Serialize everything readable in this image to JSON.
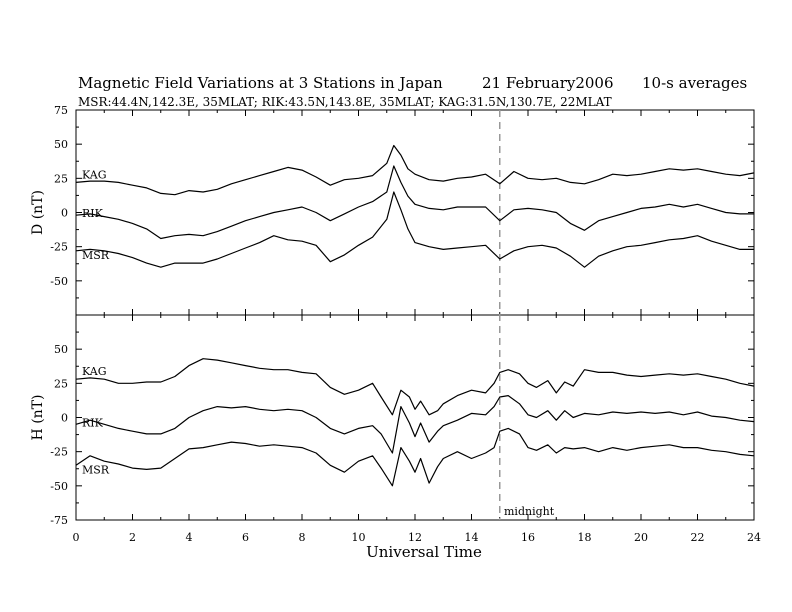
{
  "chart_data": {
    "type": "line",
    "title": "Magnetic Field Variations at 3 Stations in Japan",
    "date": "21 February2006",
    "averaging": "10-s averages",
    "subtitle": "MSR:44.4N,142.3E, 35MLAT;  RIK:43.5N,143.8E, 35MLAT;  KAG:31.5N,130.7E, 22MLAT",
    "xlabel": "Universal Time",
    "xlim": [
      0,
      24
    ],
    "xticks": [
      "0",
      "2",
      "4",
      "6",
      "8",
      "10",
      "12",
      "14",
      "16",
      "18",
      "20",
      "22",
      "24"
    ],
    "annotation": {
      "label": "midnight",
      "x": 15
    },
    "panels": [
      {
        "ylabel": "D (nT)",
        "ylim": [
          -75,
          75
        ],
        "yticks": [
          "75",
          "50",
          "25",
          "0",
          "-25",
          "-50"
        ],
        "x": [
          0,
          0.5,
          1,
          1.5,
          2,
          2.5,
          3,
          3.5,
          4,
          4.5,
          5,
          5.5,
          6,
          6.5,
          7,
          7.5,
          8,
          8.5,
          9,
          9.5,
          10,
          10.5,
          11,
          11.25,
          11.5,
          11.75,
          12,
          12.5,
          13,
          13.5,
          14,
          14.5,
          15,
          15.5,
          16,
          16.5,
          17,
          17.5,
          18,
          18.5,
          19,
          19.5,
          20,
          20.5,
          21,
          21.5,
          22,
          22.5,
          23,
          23.5,
          24
        ],
        "series": [
          {
            "name": "KAG",
            "values": [
              22,
              23,
              23,
              22,
              20,
              18,
              14,
              13,
              16,
              15,
              17,
              21,
              24,
              27,
              30,
              33,
              31,
              26,
              20,
              24,
              25,
              27,
              36,
              49,
              42,
              32,
              28,
              24,
              23,
              25,
              26,
              28,
              21,
              30,
              25,
              24,
              25,
              22,
              21,
              24,
              28,
              27,
              28,
              30,
              32,
              31,
              32,
              30,
              28,
              27,
              29
            ]
          },
          {
            "name": "RIK",
            "values": [
              -2,
              -1,
              -3,
              -5,
              -8,
              -12,
              -19,
              -17,
              -16,
              -17,
              -14,
              -10,
              -6,
              -3,
              0,
              2,
              4,
              0,
              -6,
              -1,
              4,
              8,
              15,
              34,
              22,
              12,
              6,
              3,
              2,
              4,
              4,
              4,
              -6,
              2,
              3,
              2,
              0,
              -8,
              -13,
              -6,
              -3,
              0,
              3,
              4,
              6,
              4,
              6,
              3,
              0,
              -1,
              -1
            ]
          },
          {
            "name": "MSR",
            "values": [
              -28,
              -27,
              -28,
              -30,
              -33,
              -37,
              -40,
              -37,
              -37,
              -37,
              -34,
              -30,
              -26,
              -22,
              -17,
              -20,
              -21,
              -24,
              -36,
              -31,
              -24,
              -18,
              -5,
              15,
              2,
              -12,
              -22,
              -25,
              -27,
              -26,
              -25,
              -24,
              -34,
              -28,
              -25,
              -24,
              -26,
              -32,
              -40,
              -32,
              -28,
              -25,
              -24,
              -22,
              -20,
              -19,
              -17,
              -21,
              -24,
              -27,
              -27
            ]
          }
        ]
      },
      {
        "ylabel": "H (nT)",
        "ylim": [
          -75,
          75
        ],
        "yticks": [
          "50",
          "25",
          "0",
          "-25",
          "-50",
          "-75"
        ],
        "x": [
          0,
          0.5,
          1,
          1.5,
          2,
          2.5,
          3,
          3.5,
          4,
          4.5,
          5,
          5.5,
          6,
          6.5,
          7,
          7.5,
          8,
          8.5,
          9,
          9.5,
          10,
          10.5,
          10.8,
          11.2,
          11.5,
          11.8,
          12,
          12.2,
          12.5,
          12.8,
          13,
          13.5,
          14,
          14.5,
          14.8,
          15,
          15.3,
          15.7,
          16,
          16.3,
          16.7,
          17,
          17.3,
          17.6,
          18,
          18.5,
          19,
          19.5,
          20,
          20.5,
          21,
          21.5,
          22,
          22.5,
          23,
          23.5,
          24
        ],
        "series": [
          {
            "name": "KAG",
            "values": [
              28,
              29,
              28,
              25,
              25,
              26,
              26,
              30,
              38,
              43,
              42,
              40,
              38,
              36,
              35,
              35,
              33,
              32,
              22,
              17,
              20,
              25,
              15,
              2,
              20,
              15,
              6,
              12,
              2,
              5,
              10,
              16,
              20,
              18,
              25,
              33,
              35,
              32,
              25,
              22,
              27,
              18,
              26,
              23,
              35,
              33,
              33,
              31,
              30,
              31,
              32,
              31,
              32,
              30,
              28,
              25,
              23
            ]
          },
          {
            "name": "RIK",
            "values": [
              -5,
              -2,
              -5,
              -8,
              -10,
              -12,
              -12,
              -8,
              0,
              5,
              8,
              7,
              8,
              6,
              5,
              6,
              5,
              0,
              -8,
              -12,
              -8,
              -6,
              -12,
              -26,
              8,
              -4,
              -14,
              -4,
              -18,
              -10,
              -6,
              -2,
              3,
              2,
              8,
              15,
              16,
              10,
              2,
              0,
              5,
              -2,
              5,
              0,
              3,
              2,
              4,
              3,
              4,
              3,
              4,
              2,
              4,
              1,
              0,
              -2,
              -3
            ]
          },
          {
            "name": "MSR",
            "values": [
              -35,
              -28,
              -32,
              -34,
              -37,
              -38,
              -37,
              -30,
              -23,
              -22,
              -20,
              -18,
              -19,
              -21,
              -20,
              -21,
              -22,
              -26,
              -35,
              -40,
              -32,
              -28,
              -37,
              -50,
              -22,
              -32,
              -40,
              -30,
              -48,
              -36,
              -30,
              -25,
              -30,
              -26,
              -22,
              -10,
              -8,
              -12,
              -22,
              -24,
              -20,
              -26,
              -22,
              -23,
              -22,
              -25,
              -22,
              -24,
              -22,
              -21,
              -20,
              -22,
              -22,
              -24,
              -25,
              -27,
              -28
            ]
          }
        ]
      }
    ],
    "colors": {
      "line": "#000000",
      "midnight": "#999999"
    }
  }
}
